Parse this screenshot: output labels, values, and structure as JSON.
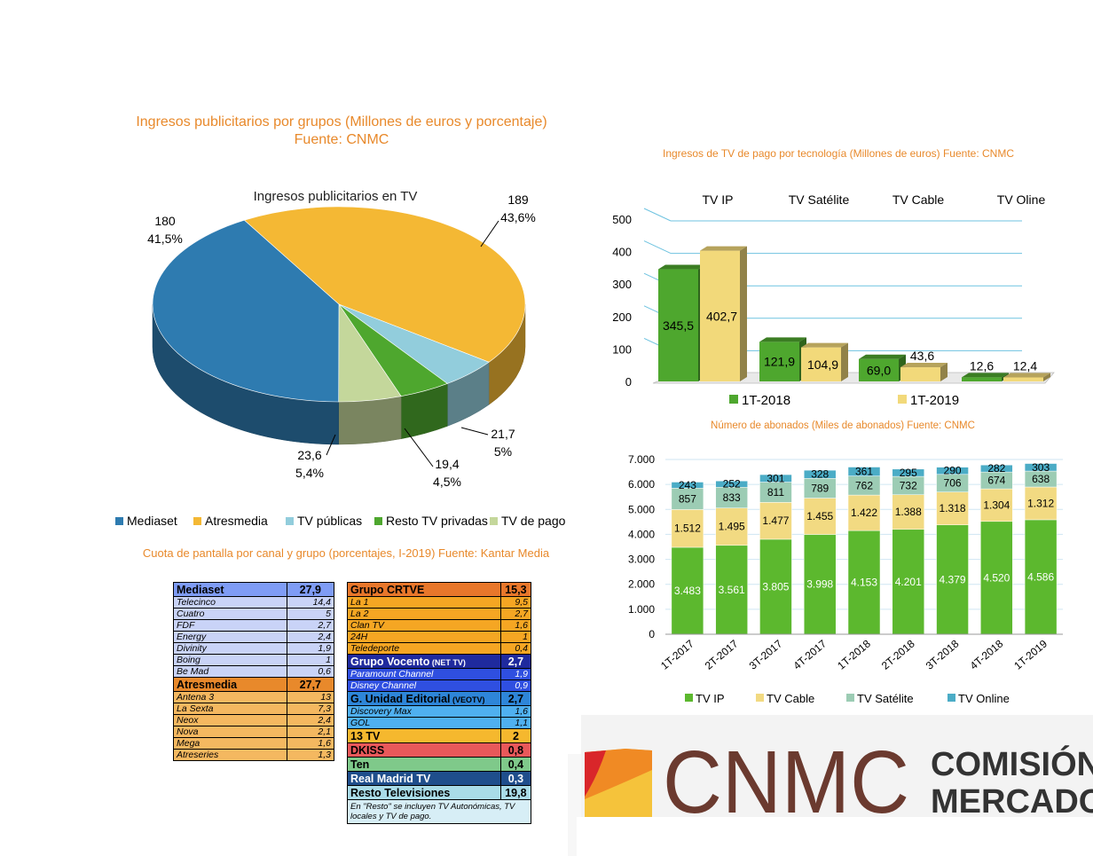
{
  "titles": {
    "pie": "Ingresos publicitarios por grupos (Millones de euros y porcentaje)",
    "pie_source": "Fuente: CNMC",
    "paytv": "Ingresos de TV de pago por tecnología (Millones de euros) Fuente: CNMC",
    "subs": "Número de abonados (Miles de abonados) Fuente: CNMC",
    "share": "Cuota de pantalla por canal y grupo (porcentajes, I-2019) Fuente: Kantar Media"
  },
  "chart_data": [
    {
      "type": "pie",
      "title": "Ingresos publicitarios en TV",
      "slices": [
        {
          "name": "Mediaset",
          "value": 180,
          "label": "180",
          "pct": "41,5%",
          "color": "#2E7BB0"
        },
        {
          "name": "Atresmedia",
          "value": 189,
          "label": "189",
          "pct": "43,6%",
          "color": "#F4B834"
        },
        {
          "name": "TV públicas",
          "value": 21.7,
          "label": "21,7",
          "pct": "5%",
          "color": "#92CDDC"
        },
        {
          "name": "Resto TV privadas",
          "value": 19.4,
          "label": "19,4",
          "pct": "4,5%",
          "color": "#4EA72E"
        },
        {
          "name": "TV de pago",
          "value": 23.6,
          "label": "23,6",
          "pct": "5,4%",
          "color": "#C4D79B"
        }
      ],
      "legend_position": "bottom"
    },
    {
      "type": "bar",
      "categories": [
        "TV IP",
        "TV Satélite",
        "TV Cable",
        "TV Oline"
      ],
      "series": [
        {
          "name": "1T-2018",
          "values": [
            345.5,
            121.9,
            69.0,
            12.6
          ],
          "labels": [
            "345,5",
            "121,9",
            "69,0",
            "12,6"
          ],
          "color": "#4EA72E"
        },
        {
          "name": "1T-2019",
          "values": [
            402.7,
            104.9,
            43.6,
            12.4
          ],
          "labels": [
            "402,7",
            "104,9",
            "43,6",
            "12,4"
          ],
          "color": "#F2D97A"
        }
      ],
      "ylim": [
        0,
        500
      ],
      "yticks": [
        "0",
        "100",
        "200",
        "300",
        "400",
        "500"
      ],
      "grid": true,
      "legend_position": "bottom"
    },
    {
      "type": "bar",
      "stacked": true,
      "categories": [
        "1T-2017",
        "2T-2017",
        "3T-2017",
        "4T-2017",
        "1T-2018",
        "2T-2018",
        "3T-2018",
        "4T-2018",
        "1T-2019"
      ],
      "series": [
        {
          "name": "TV IP",
          "values": [
            3483,
            3561,
            3805,
            3998,
            4153,
            4201,
            4379,
            4520,
            4586
          ],
          "labels": [
            "3.483",
            "3.561",
            "3.805",
            "3.998",
            "4.153",
            "4.201",
            "4.379",
            "4.520",
            "4.586"
          ],
          "color": "#5CB82E"
        },
        {
          "name": "TV Cable",
          "values": [
            1512,
            1495,
            1477,
            1455,
            1422,
            1388,
            1318,
            1304,
            1312
          ],
          "labels": [
            "1.512",
            "1.495",
            "1.477",
            "1.455",
            "1.422",
            "1.388",
            "1.318",
            "1.304",
            "1.312"
          ],
          "color": "#F2DA82"
        },
        {
          "name": "TV Satélite",
          "values": [
            857,
            833,
            811,
            789,
            762,
            732,
            706,
            674,
            638
          ],
          "labels": [
            "857",
            "833",
            "811",
            "789",
            "762",
            "732",
            "706",
            "674",
            "638"
          ],
          "color": "#9CCCB4"
        },
        {
          "name": "TV Online",
          "values": [
            243,
            252,
            301,
            328,
            361,
            295,
            290,
            282,
            303
          ],
          "labels": [
            "243",
            "252",
            "301",
            "328",
            "361",
            "295",
            "290",
            "282",
            "303"
          ],
          "color": "#4BACC6"
        }
      ],
      "ylim": [
        0,
        7000
      ],
      "yticks": [
        "0",
        "1.000",
        "2.000",
        "3.000",
        "4.000",
        "5.000",
        "6.000",
        "7.000"
      ],
      "grid": true,
      "legend_position": "bottom"
    }
  ],
  "share_table": {
    "left": [
      {
        "name": "Mediaset",
        "value": "27,9",
        "head": true,
        "bg": "#7F9CF5",
        "fg": "#000000"
      },
      {
        "name": "Telecinco",
        "value": "14,4",
        "bg": "#C9D3F7"
      },
      {
        "name": "Cuatro",
        "value": "5",
        "bg": "#C9D3F7"
      },
      {
        "name": "FDF",
        "value": "2,7",
        "bg": "#C9D3F7"
      },
      {
        "name": "Energy",
        "value": "2,4",
        "bg": "#C9D3F7"
      },
      {
        "name": "Divinity",
        "value": "1,9",
        "bg": "#C9D3F7"
      },
      {
        "name": "Boing",
        "value": "1",
        "bg": "#C9D3F7"
      },
      {
        "name": "Be Mad",
        "value": "0,6",
        "bg": "#C9D3F7"
      },
      {
        "name": "Atresmedia",
        "value": "27,7",
        "head": true,
        "bg": "#E8892B",
        "fg": "#000000"
      },
      {
        "name": "Antena 3",
        "value": "13",
        "bg": "#F4B860"
      },
      {
        "name": "La Sexta",
        "value": "7,3",
        "bg": "#F4B860"
      },
      {
        "name": "Neox",
        "value": "2,4",
        "bg": "#F4B860"
      },
      {
        "name": "Nova",
        "value": "2,1",
        "bg": "#F4B860"
      },
      {
        "name": "Mega",
        "value": "1,6",
        "bg": "#F4B860"
      },
      {
        "name": "Atreseries",
        "value": "1,3",
        "bg": "#F4B860"
      }
    ],
    "right": [
      {
        "name": "Grupo CRTVE",
        "value": "15,3",
        "head": true,
        "bg": "#E8772B",
        "fg": "#000000"
      },
      {
        "name": "La 1",
        "value": "9,5",
        "bg": "#F5A623"
      },
      {
        "name": "La 2",
        "value": "2,7",
        "bg": "#F5A623"
      },
      {
        "name": "Clan TV",
        "value": "1,6",
        "bg": "#F5A623"
      },
      {
        "name": "24H",
        "value": "1",
        "bg": "#F5A623"
      },
      {
        "name": "Teledeporte",
        "value": "0,4",
        "bg": "#F5A623"
      },
      {
        "name": "Grupo Vocento",
        "name_small": "(NET TV)",
        "value": "2,7",
        "head": true,
        "bg": "#1F2A9E",
        "fg": "#FFFFFF"
      },
      {
        "name": "Paramount Channel",
        "value": "1,9",
        "bg": "#2F4FE0",
        "fg": "#FFFFFF"
      },
      {
        "name": "Disney Channel",
        "value": "0,9",
        "bg": "#2F4FE0",
        "fg": "#FFFFFF"
      },
      {
        "name": "G. Unidad Editorial",
        "name_small": "(VEOTV)",
        "value": "2,7",
        "head": true,
        "bg": "#2E86D9",
        "fg": "#000000"
      },
      {
        "name": "Discovery Max",
        "value": "1,6",
        "bg": "#4FB0F0"
      },
      {
        "name": "GOL",
        "value": "1,1",
        "bg": "#4FB0F0"
      },
      {
        "name": "13 TV",
        "value": "2",
        "head": true,
        "bg": "#F5B82E",
        "fg": "#000000"
      },
      {
        "name": "DKISS",
        "value": "0,8",
        "head": true,
        "bg": "#E8585A",
        "fg": "#000000"
      },
      {
        "name": "Ten",
        "value": "0,4",
        "head": true,
        "bg": "#7FC98A",
        "fg": "#000000"
      },
      {
        "name": "Real Madrid TV",
        "value": "0,3",
        "head": true,
        "bg": "#1F4E8C",
        "fg": "#FFFFFF"
      },
      {
        "name": "Resto Televisiones",
        "value": "19,8",
        "head": true,
        "bg": "#A9DCE8",
        "fg": "#000000"
      }
    ],
    "note": "En \"Resto\" se incluyen  TV Autonómicas, TV locales y TV de pago."
  },
  "logo": {
    "text": "CNMC",
    "line1": "COMISIÓN",
    "line2": "MERCADOS",
    "colors": [
      "#D9262A",
      "#F0A52B",
      "#F5C33B"
    ]
  }
}
